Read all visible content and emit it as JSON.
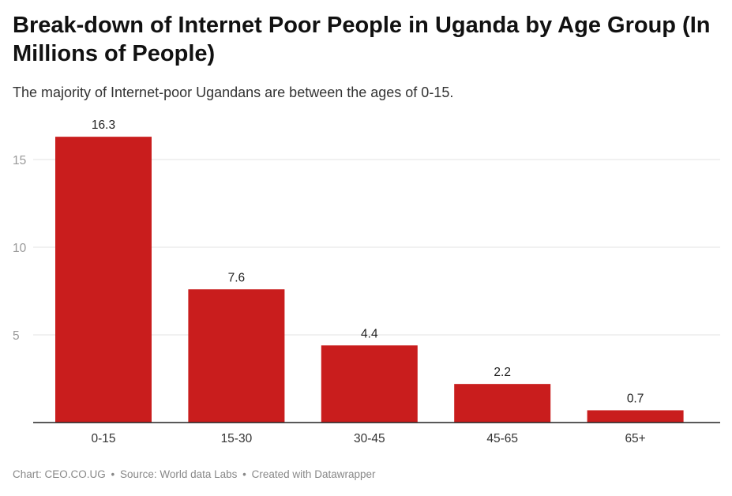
{
  "header": {
    "title": "Break-down of Internet Poor People in Uganda by Age Group (In Millions of People)",
    "subtitle": "The majority of Internet-poor Ugandans are between the ages of 0-15."
  },
  "footer": {
    "chart_credit": "Chart: CEO.CO.UG",
    "separator": "•",
    "source": "Source: World data Labs",
    "created_with": "Created with Datawrapper"
  },
  "colors": {
    "bar": "#c91d1d",
    "grid": "#e3e3e3",
    "axis": "#222222",
    "tick_label": "#999999",
    "category_label": "#333333",
    "value_label": "#222222"
  },
  "chart_data": {
    "type": "bar",
    "title": "Break-down of Internet Poor People in Uganda by Age Group (In Millions of People)",
    "subtitle": "The majority of Internet-poor Ugandans are between the ages of 0-15.",
    "xlabel": "",
    "ylabel": "",
    "categories": [
      "0-15",
      "15-30",
      "30-45",
      "45-65",
      "65+"
    ],
    "values": [
      16.3,
      7.6,
      4.4,
      2.2,
      0.7
    ],
    "value_labels": [
      "16.3",
      "7.6",
      "4.4",
      "2.2",
      "0.7"
    ],
    "yticks": [
      5,
      10,
      15
    ],
    "ylim": [
      0,
      17.5
    ],
    "grid": true,
    "legend": "none"
  }
}
